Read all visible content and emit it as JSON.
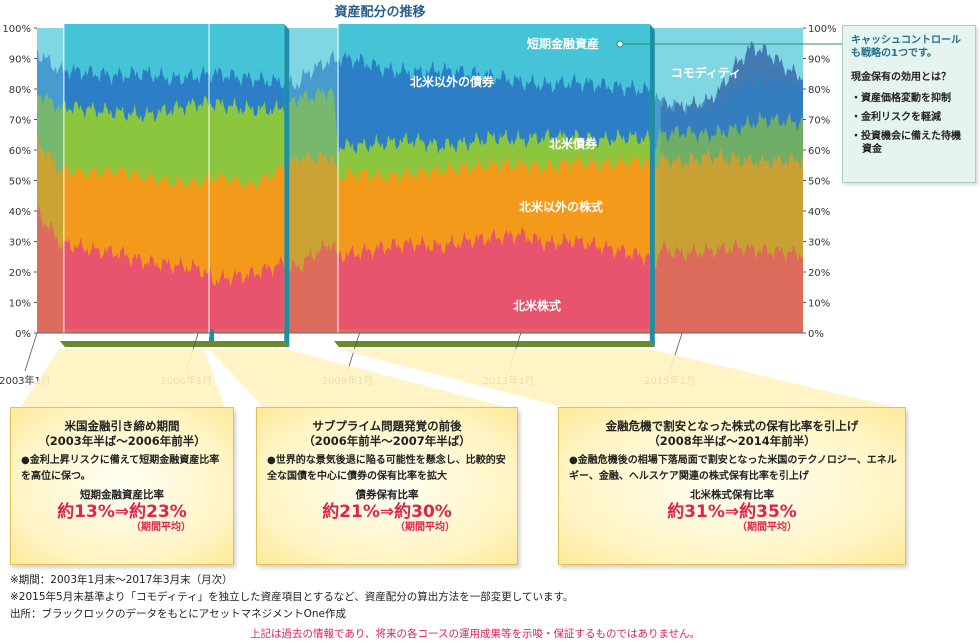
{
  "chart_data": {
    "type": "area",
    "title": "資産配分の推移",
    "y_ticks_left": [
      "100%",
      "90%",
      "80%",
      "70%",
      "60%",
      "50%",
      "40%",
      "30%",
      "20%",
      "10%",
      "0%"
    ],
    "y_ticks_right": [
      "100%",
      "90%",
      "80%",
      "70%",
      "60%",
      "50%",
      "40%",
      "30%",
      "20%",
      "10%",
      "0%"
    ],
    "ylim": [
      0,
      100
    ],
    "x_ticks": [
      "2003年1月",
      "2006年1月",
      "2009年1月",
      "2012年1月",
      "2015年1月"
    ],
    "x_tick_dates": [
      2003,
      2006,
      2009,
      2012,
      2015
    ],
    "xlim": [
      2003.0,
      2017.25
    ],
    "series_colors": {
      "na_equity": "#e8536e",
      "non_na_equity": "#f39a1a",
      "na_bonds": "#8cc63e",
      "non_na_bonds": "#2c7fc6",
      "commodity": "#2a4d9b",
      "short_term": "#44c4d6"
    },
    "series": [
      {
        "key": "na_equity",
        "name": "北米株式",
        "color": "#e8536e",
        "values": [
          [
            2003.0,
            40
          ],
          [
            2003.5,
            28
          ],
          [
            2004.0,
            26
          ],
          [
            2004.5,
            25
          ],
          [
            2005.0,
            22
          ],
          [
            2005.5,
            21
          ],
          [
            2006.0,
            20
          ],
          [
            2006.3,
            16
          ],
          [
            2006.6,
            17
          ],
          [
            2007.0,
            18
          ],
          [
            2007.5,
            21
          ],
          [
            2007.9,
            22
          ],
          [
            2008.0,
            24
          ],
          [
            2008.5,
            30
          ],
          [
            2008.6,
            24
          ],
          [
            2009.0,
            25
          ],
          [
            2009.5,
            27
          ],
          [
            2010.0,
            28
          ],
          [
            2010.5,
            27
          ],
          [
            2011.0,
            29
          ],
          [
            2011.5,
            30
          ],
          [
            2012.0,
            31
          ],
          [
            2012.5,
            28
          ],
          [
            2013.0,
            29
          ],
          [
            2013.5,
            27
          ],
          [
            2014.0,
            25
          ],
          [
            2014.5,
            23
          ],
          [
            2014.6,
            28
          ],
          [
            2015.0,
            26
          ],
          [
            2015.5,
            27
          ],
          [
            2016.0,
            28
          ],
          [
            2016.5,
            27
          ],
          [
            2017.25,
            26
          ]
        ]
      },
      {
        "key": "non_na_equity",
        "name": "北米以外の株式",
        "color": "#f39a1a",
        "values": [
          [
            2003.0,
            63
          ],
          [
            2003.5,
            52
          ],
          [
            2004.0,
            51
          ],
          [
            2004.5,
            52
          ],
          [
            2005.0,
            50
          ],
          [
            2005.5,
            48
          ],
          [
            2006.0,
            48
          ],
          [
            2006.3,
            50
          ],
          [
            2006.6,
            49
          ],
          [
            2007.0,
            47
          ],
          [
            2007.5,
            52
          ],
          [
            2007.9,
            58
          ],
          [
            2008.0,
            57
          ],
          [
            2008.5,
            58
          ],
          [
            2008.6,
            50
          ],
          [
            2009.0,
            51
          ],
          [
            2009.5,
            50
          ],
          [
            2010.0,
            51
          ],
          [
            2010.5,
            52
          ],
          [
            2011.0,
            53
          ],
          [
            2011.5,
            54
          ],
          [
            2012.0,
            54
          ],
          [
            2012.5,
            53
          ],
          [
            2013.0,
            55
          ],
          [
            2013.5,
            54
          ],
          [
            2014.0,
            55
          ],
          [
            2014.5,
            55
          ],
          [
            2014.6,
            57
          ],
          [
            2015.0,
            56
          ],
          [
            2015.5,
            58
          ],
          [
            2016.0,
            57
          ],
          [
            2016.5,
            56
          ],
          [
            2017.25,
            57
          ]
        ]
      },
      {
        "key": "na_bonds",
        "name": "北米債券",
        "color": "#8cc63e",
        "values": [
          [
            2003.0,
            79
          ],
          [
            2003.5,
            73
          ],
          [
            2004.0,
            72
          ],
          [
            2004.5,
            71
          ],
          [
            2005.0,
            70
          ],
          [
            2005.5,
            72
          ],
          [
            2006.0,
            74
          ],
          [
            2006.3,
            74
          ],
          [
            2006.6,
            73
          ],
          [
            2007.0,
            72
          ],
          [
            2007.5,
            72
          ],
          [
            2007.9,
            78
          ],
          [
            2008.0,
            77
          ],
          [
            2008.5,
            80
          ],
          [
            2008.6,
            60
          ],
          [
            2009.0,
            60
          ],
          [
            2009.5,
            61
          ],
          [
            2010.0,
            62
          ],
          [
            2010.5,
            60
          ],
          [
            2011.0,
            61
          ],
          [
            2011.5,
            63
          ],
          [
            2012.0,
            62
          ],
          [
            2012.5,
            63
          ],
          [
            2013.0,
            63
          ],
          [
            2013.5,
            62
          ],
          [
            2014.0,
            63
          ],
          [
            2014.5,
            62
          ],
          [
            2014.6,
            65
          ],
          [
            2015.0,
            66
          ],
          [
            2015.5,
            65
          ],
          [
            2016.0,
            67
          ],
          [
            2016.5,
            70
          ],
          [
            2017.25,
            69
          ]
        ]
      },
      {
        "key": "non_na_bonds",
        "name": "北米以外の債券",
        "color": "#2c7fc6",
        "values": [
          [
            2003.0,
            92
          ],
          [
            2003.5,
            85
          ],
          [
            2004.0,
            84
          ],
          [
            2004.5,
            83
          ],
          [
            2005.0,
            84
          ],
          [
            2005.5,
            82
          ],
          [
            2006.0,
            83
          ],
          [
            2006.3,
            84
          ],
          [
            2006.6,
            83
          ],
          [
            2007.0,
            82
          ],
          [
            2007.5,
            81
          ],
          [
            2007.9,
            82
          ],
          [
            2008.0,
            85
          ],
          [
            2008.5,
            90
          ],
          [
            2008.6,
            89
          ],
          [
            2009.0,
            88
          ],
          [
            2009.5,
            85
          ],
          [
            2010.0,
            84
          ],
          [
            2010.5,
            85
          ],
          [
            2011.0,
            84
          ],
          [
            2011.5,
            83
          ],
          [
            2012.0,
            81
          ],
          [
            2012.5,
            80
          ],
          [
            2013.0,
            81
          ],
          [
            2013.5,
            80
          ],
          [
            2014.0,
            79
          ],
          [
            2014.5,
            78
          ],
          [
            2014.6,
            75
          ],
          [
            2015.0,
            73
          ],
          [
            2015.5,
            74
          ],
          [
            2016.0,
            80
          ],
          [
            2016.5,
            84
          ],
          [
            2017.25,
            82
          ]
        ]
      },
      {
        "key": "commodity",
        "name": "コモディティ",
        "color": "#2a4d9b",
        "values": [
          [
            2014.6,
            75
          ],
          [
            2015.0,
            74
          ],
          [
            2015.5,
            76
          ],
          [
            2015.8,
            82
          ],
          [
            2016.0,
            88
          ],
          [
            2016.3,
            94
          ],
          [
            2016.6,
            92
          ],
          [
            2017.0,
            86
          ],
          [
            2017.25,
            84
          ]
        ]
      },
      {
        "key": "short_term",
        "name": "短期金融資産",
        "color": "#44c4d6",
        "values": [
          [
            2003.0,
            100
          ],
          [
            2017.25,
            100
          ]
        ]
      }
    ],
    "series_labels": [
      {
        "key": "short_term",
        "text": "短期金融資産"
      },
      {
        "key": "non_na_bonds",
        "text": "北米以外の債券"
      },
      {
        "key": "na_bonds",
        "text": "北米債券"
      },
      {
        "key": "non_na_equity",
        "text": "北米以外の株式"
      },
      {
        "key": "na_equity",
        "text": "北米株式"
      },
      {
        "key": "commodity",
        "text": "コモディティ"
      }
    ],
    "highlight_periods": [
      {
        "start": 2003.5,
        "end": 2006.2
      },
      {
        "start": 2006.2,
        "end": 2007.6
      },
      {
        "start": 2008.6,
        "end": 2014.4
      }
    ]
  },
  "callouts": [
    {
      "title": "米国金融引き締め期間",
      "period": "（2003年半ば〜2006年前半）",
      "bullet": "●金利上昇リスクに備えて短期金融資産比率を高位に保つ。",
      "metric": "短期金融資産比率",
      "value": "約13%⇒約23%",
      "note": "（期間平均）"
    },
    {
      "title": "サブプライム問題発覚の前後",
      "period": "（2006年前半〜2007年半ば）",
      "bullet": "●世界的な景気後退に陥る可能性を懸念し、比較的安全な国債を中心に債券の保有比率を拡大",
      "metric": "債券保有比率",
      "value": "約21%⇒約30%",
      "note": "（期間平均）"
    },
    {
      "title": "金融危機で割安となった株式の保有比率を引上げ",
      "period": "（2008年半ば〜2014年前半）",
      "bullet": "●金融危機後の相場下落局面で割安となった米国のテクノロジー、エネルギー、金融、ヘルスケア関連の株式保有比率を引上げ",
      "metric": "北米株式保有比率",
      "value": "約31%⇒約35%",
      "note": "（期間平均）"
    }
  ],
  "side_box": {
    "heading": "キャッシュコントロールも戦略の1つです。",
    "question": "現金保有の効用とは？",
    "items": [
      "・資産価格変動を抑制",
      "・金利リスクを軽減",
      "・投資機会に備えた待機資金"
    ]
  },
  "footnotes": [
    "※期間：2003年1月末〜2017年3月末（月次）",
    "※2015年5月末基準より「コモディティ」を独立した資産項目とするなど、資産配分の算出方法を一部変更しています。",
    "出所：ブラックロックのデータをもとにアセットマネジメントOne作成"
  ],
  "disclaimer": "上記は過去の情報であり、将来の各コースの運用成果等を示唆・保証するものではありません。"
}
